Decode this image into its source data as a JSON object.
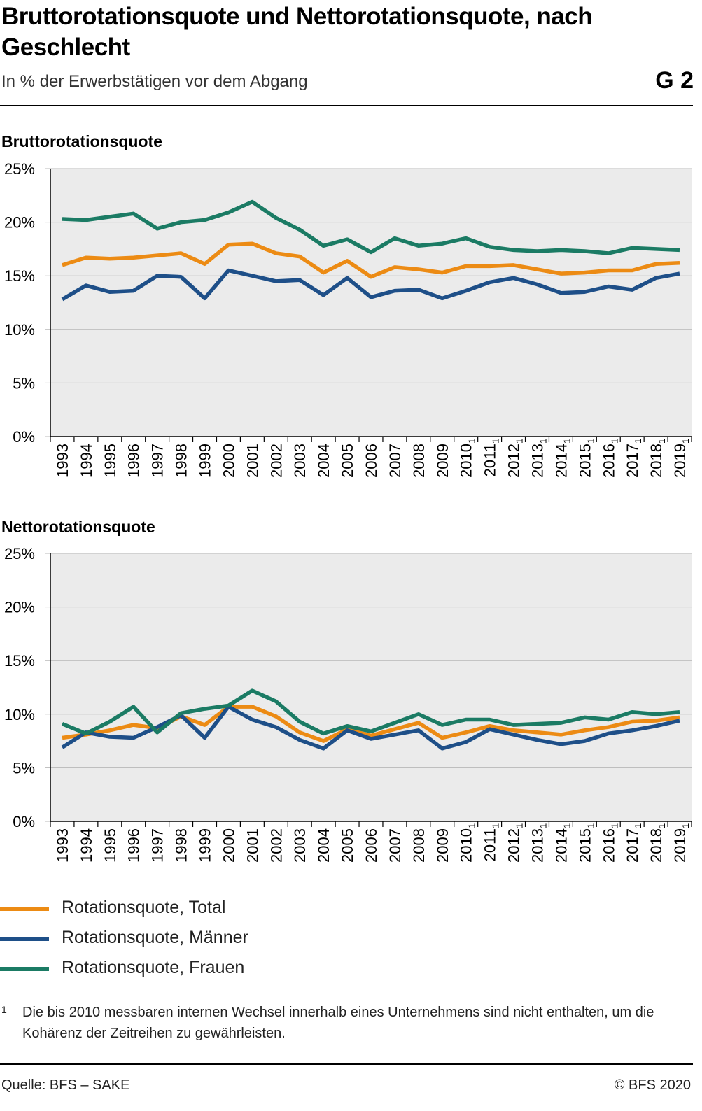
{
  "header": {
    "title": "Bruttorotationsquote und Nettorotationsquote, nach Geschlecht",
    "subtitle": "In % der Erwerbstätigen vor dem Abgang",
    "code": "G 2"
  },
  "colors": {
    "total": "#ec8b14",
    "maenner": "#1e4f88",
    "frauen": "#1b7b64",
    "plot_bg": "#ebebeb"
  },
  "chart_data": [
    {
      "type": "line",
      "title": "Bruttorotationsquote",
      "categories": [
        "1993",
        "1994",
        "1995",
        "1996",
        "1997",
        "1998",
        "1999",
        "2000",
        "2001",
        "2002",
        "2003",
        "2004",
        "2005",
        "2006",
        "2007",
        "2008",
        "2009",
        "2010",
        "2011",
        "2012",
        "2013",
        "2014",
        "2015",
        "2016",
        "2017",
        "2018",
        "2019"
      ],
      "footnote_marked_from": "2010",
      "ylim": [
        0,
        25
      ],
      "yticks": [
        "0%",
        "5%",
        "10%",
        "15%",
        "20%",
        "25%"
      ],
      "series": [
        {
          "name": "Rotationsquote, Total",
          "values": [
            16.0,
            16.7,
            16.6,
            16.7,
            16.9,
            17.1,
            16.1,
            17.9,
            18.0,
            17.1,
            16.8,
            15.3,
            16.4,
            14.9,
            15.8,
            15.6,
            15.3,
            15.9,
            15.9,
            16.0,
            15.6,
            15.2,
            15.3,
            15.5,
            15.5,
            16.1,
            16.2
          ]
        },
        {
          "name": "Rotationsquote, Männer",
          "values": [
            12.8,
            14.1,
            13.5,
            13.6,
            15.0,
            14.9,
            12.9,
            15.5,
            15.0,
            14.5,
            14.6,
            13.2,
            14.8,
            13.0,
            13.6,
            13.7,
            12.9,
            13.6,
            14.4,
            14.8,
            14.2,
            13.4,
            13.5,
            14.0,
            13.7,
            14.8,
            15.2
          ]
        },
        {
          "name": "Rotationsquote, Frauen",
          "values": [
            20.3,
            20.2,
            20.5,
            20.8,
            19.4,
            20.0,
            20.2,
            20.9,
            21.9,
            20.4,
            19.3,
            17.8,
            18.4,
            17.2,
            18.5,
            17.8,
            18.0,
            18.5,
            17.7,
            17.4,
            17.3,
            17.4,
            17.3,
            17.1,
            17.6,
            17.5,
            17.4
          ]
        }
      ]
    },
    {
      "type": "line",
      "title": "Nettorotationsquote",
      "categories": [
        "1993",
        "1994",
        "1995",
        "1996",
        "1997",
        "1998",
        "1999",
        "2000",
        "2001",
        "2002",
        "2003",
        "2004",
        "2005",
        "2006",
        "2007",
        "2008",
        "2009",
        "2010",
        "2011",
        "2012",
        "2013",
        "2014",
        "2015",
        "2016",
        "2017",
        "2018",
        "2019"
      ],
      "footnote_marked_from": "2010",
      "ylim": [
        0,
        25
      ],
      "yticks": [
        "0%",
        "5%",
        "10%",
        "15%",
        "20%",
        "25%"
      ],
      "series": [
        {
          "name": "Rotationsquote, Total",
          "values": [
            7.8,
            8.1,
            8.5,
            9.0,
            8.7,
            9.8,
            9.0,
            10.7,
            10.7,
            9.8,
            8.3,
            7.5,
            8.6,
            8.0,
            8.6,
            9.2,
            7.8,
            8.3,
            8.9,
            8.5,
            8.3,
            8.1,
            8.5,
            8.8,
            9.3,
            9.4,
            9.7
          ]
        },
        {
          "name": "Rotationsquote, Männer",
          "values": [
            6.9,
            8.3,
            7.9,
            7.8,
            8.8,
            9.9,
            7.8,
            10.7,
            9.5,
            8.8,
            7.6,
            6.8,
            8.5,
            7.7,
            8.1,
            8.5,
            6.8,
            7.4,
            8.6,
            8.1,
            7.6,
            7.2,
            7.5,
            8.2,
            8.5,
            8.9,
            9.4
          ]
        },
        {
          "name": "Rotationsquote, Frauen",
          "values": [
            9.1,
            8.2,
            9.3,
            10.7,
            8.3,
            10.1,
            10.5,
            10.8,
            12.2,
            11.2,
            9.3,
            8.2,
            8.9,
            8.4,
            9.2,
            10.0,
            9.0,
            9.5,
            9.5,
            9.0,
            9.1,
            9.2,
            9.7,
            9.5,
            10.2,
            10.0,
            10.2
          ]
        }
      ]
    }
  ],
  "legend": [
    {
      "label": "Rotationsquote, Total",
      "color": "#ec8b14"
    },
    {
      "label": "Rotationsquote, Männer",
      "color": "#1e4f88"
    },
    {
      "label": "Rotationsquote, Frauen",
      "color": "#1b7b64"
    }
  ],
  "footnote": {
    "marker": "1",
    "text": "Die bis 2010 messbaren internen Wechsel innerhalb eines Unternehmens sind nicht enthalten, um die Kohärenz der Zeitreihen zu gewährleisten."
  },
  "footer": {
    "source": "Quelle: BFS – SAKE",
    "copyright": "© BFS 2020"
  }
}
